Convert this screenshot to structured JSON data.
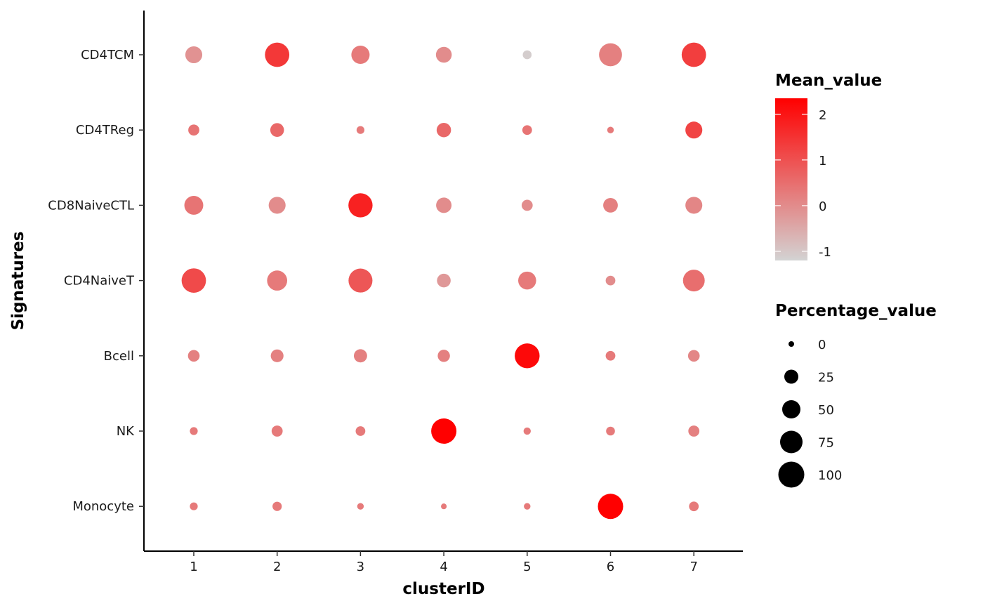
{
  "chart_data": {
    "type": "scatter",
    "subtype": "dot-plot",
    "xlabel": "clusterID",
    "ylabel": "Signatures",
    "x_categories": [
      "1",
      "2",
      "3",
      "4",
      "5",
      "6",
      "7"
    ],
    "y_categories": [
      "CD4TCM",
      "CD4TReg",
      "CD8NaiveCTL",
      "CD4NaiveT",
      "Bcell",
      "NK",
      "Monocyte"
    ],
    "points": [
      {
        "cluster": "1",
        "signature": "CD4TCM",
        "mean_value": -0.1,
        "percentage_value": 38
      },
      {
        "cluster": "2",
        "signature": "CD4TCM",
        "mean_value": 1.4,
        "percentage_value": 92
      },
      {
        "cluster": "3",
        "signature": "CD4TCM",
        "mean_value": 0.3,
        "percentage_value": 46
      },
      {
        "cluster": "4",
        "signature": "CD4TCM",
        "mean_value": 0.0,
        "percentage_value": 32
      },
      {
        "cluster": "5",
        "signature": "CD4TCM",
        "mean_value": -1.1,
        "percentage_value": 6
      },
      {
        "cluster": "6",
        "signature": "CD4TCM",
        "mean_value": 0.2,
        "percentage_value": 80
      },
      {
        "cluster": "7",
        "signature": "CD4TCM",
        "mean_value": 1.3,
        "percentage_value": 92
      },
      {
        "cluster": "1",
        "signature": "CD4TReg",
        "mean_value": 0.4,
        "percentage_value": 12
      },
      {
        "cluster": "2",
        "signature": "CD4TReg",
        "mean_value": 0.6,
        "percentage_value": 22
      },
      {
        "cluster": "3",
        "signature": "CD4TReg",
        "mean_value": 0.3,
        "percentage_value": 4
      },
      {
        "cluster": "4",
        "signature": "CD4TReg",
        "mean_value": 0.6,
        "percentage_value": 25
      },
      {
        "cluster": "5",
        "signature": "CD4TReg",
        "mean_value": 0.4,
        "percentage_value": 8
      },
      {
        "cluster": "6",
        "signature": "CD4TReg",
        "mean_value": 0.3,
        "percentage_value": 2
      },
      {
        "cluster": "7",
        "signature": "CD4TReg",
        "mean_value": 1.2,
        "percentage_value": 38
      },
      {
        "cluster": "1",
        "signature": "CD8NaiveCTL",
        "mean_value": 0.4,
        "percentage_value": 50
      },
      {
        "cluster": "2",
        "signature": "CD8NaiveCTL",
        "mean_value": 0.0,
        "percentage_value": 38
      },
      {
        "cluster": "3",
        "signature": "CD8NaiveCTL",
        "mean_value": 1.8,
        "percentage_value": 90
      },
      {
        "cluster": "4",
        "signature": "CD8NaiveCTL",
        "mean_value": 0.0,
        "percentage_value": 30
      },
      {
        "cluster": "5",
        "signature": "CD8NaiveCTL",
        "mean_value": 0.0,
        "percentage_value": 12
      },
      {
        "cluster": "6",
        "signature": "CD8NaiveCTL",
        "mean_value": 0.2,
        "percentage_value": 26
      },
      {
        "cluster": "7",
        "signature": "CD8NaiveCTL",
        "mean_value": 0.1,
        "percentage_value": 38
      },
      {
        "cluster": "1",
        "signature": "CD4NaiveT",
        "mean_value": 1.1,
        "percentage_value": 92
      },
      {
        "cluster": "2",
        "signature": "CD4NaiveT",
        "mean_value": 0.3,
        "percentage_value": 58
      },
      {
        "cluster": "3",
        "signature": "CD4NaiveT",
        "mean_value": 0.9,
        "percentage_value": 88
      },
      {
        "cluster": "4",
        "signature": "CD4NaiveT",
        "mean_value": -0.2,
        "percentage_value": 22
      },
      {
        "cluster": "5",
        "signature": "CD4NaiveT",
        "mean_value": 0.3,
        "percentage_value": 44
      },
      {
        "cluster": "6",
        "signature": "CD4NaiveT",
        "mean_value": 0.0,
        "percentage_value": 8
      },
      {
        "cluster": "7",
        "signature": "CD4NaiveT",
        "mean_value": 0.5,
        "percentage_value": 70
      },
      {
        "cluster": "1",
        "signature": "Bcell",
        "mean_value": 0.2,
        "percentage_value": 14
      },
      {
        "cluster": "2",
        "signature": "Bcell",
        "mean_value": 0.2,
        "percentage_value": 18
      },
      {
        "cluster": "3",
        "signature": "Bcell",
        "mean_value": 0.2,
        "percentage_value": 20
      },
      {
        "cluster": "4",
        "signature": "Bcell",
        "mean_value": 0.2,
        "percentage_value": 16
      },
      {
        "cluster": "5",
        "signature": "Bcell",
        "mean_value": 2.2,
        "percentage_value": 96
      },
      {
        "cluster": "6",
        "signature": "Bcell",
        "mean_value": 0.3,
        "percentage_value": 8
      },
      {
        "cluster": "7",
        "signature": "Bcell",
        "mean_value": 0.1,
        "percentage_value": 14
      },
      {
        "cluster": "1",
        "signature": "NK",
        "mean_value": 0.3,
        "percentage_value": 4
      },
      {
        "cluster": "2",
        "signature": "NK",
        "mean_value": 0.3,
        "percentage_value": 12
      },
      {
        "cluster": "3",
        "signature": "NK",
        "mean_value": 0.3,
        "percentage_value": 8
      },
      {
        "cluster": "4",
        "signature": "NK",
        "mean_value": 2.4,
        "percentage_value": 100
      },
      {
        "cluster": "5",
        "signature": "NK",
        "mean_value": 0.3,
        "percentage_value": 3
      },
      {
        "cluster": "6",
        "signature": "NK",
        "mean_value": 0.3,
        "percentage_value": 6
      },
      {
        "cluster": "7",
        "signature": "NK",
        "mean_value": 0.2,
        "percentage_value": 12
      },
      {
        "cluster": "1",
        "signature": "Monocyte",
        "mean_value": 0.3,
        "percentage_value": 4
      },
      {
        "cluster": "2",
        "signature": "Monocyte",
        "mean_value": 0.3,
        "percentage_value": 7
      },
      {
        "cluster": "3",
        "signature": "Monocyte",
        "mean_value": 0.3,
        "percentage_value": 2
      },
      {
        "cluster": "4",
        "signature": "Monocyte",
        "mean_value": 0.3,
        "percentage_value": 1
      },
      {
        "cluster": "5",
        "signature": "Monocyte",
        "mean_value": 0.3,
        "percentage_value": 2
      },
      {
        "cluster": "6",
        "signature": "Monocyte",
        "mean_value": 2.4,
        "percentage_value": 100
      },
      {
        "cluster": "7",
        "signature": "Monocyte",
        "mean_value": 0.3,
        "percentage_value": 8
      }
    ],
    "color_legend": {
      "title": "Mean_value",
      "min": -1.2,
      "max": 2.35,
      "ticks": [
        -1,
        0,
        1,
        2
      ],
      "tick_labels": [
        "-1",
        "0",
        "1",
        "2"
      ],
      "low_color": "#d3d3d3",
      "high_color": "#ff0000"
    },
    "size_legend": {
      "title": "Percentage_value",
      "values": [
        0,
        25,
        50,
        75,
        100
      ],
      "labels": [
        "0",
        "25",
        "50",
        "75",
        "100"
      ],
      "color": "#000000"
    },
    "grid": false,
    "legend_position": "right"
  }
}
